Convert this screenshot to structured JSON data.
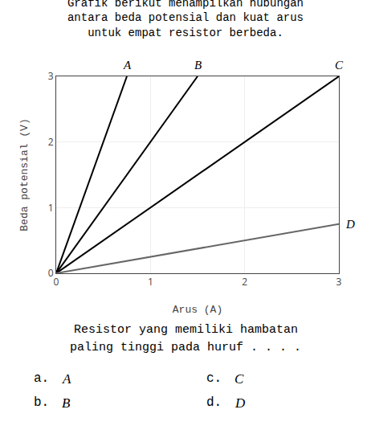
{
  "chart_data": {
    "type": "line",
    "title": [
      "Grafik berikut menampilkan hubungan",
      "antara beda potensial dan kuat arus",
      "untuk empat resistor berbeda."
    ],
    "xlabel": "Arus (A)",
    "ylabel": "Beda potensial (V)",
    "xlim": [
      0,
      3
    ],
    "ylim": [
      0,
      3
    ],
    "xticks": [
      0,
      1,
      2,
      3
    ],
    "yticks": [
      0,
      1,
      2,
      3
    ],
    "grid": true,
    "series": [
      {
        "name": "A",
        "x": [
          0,
          0.75
        ],
        "values": [
          0,
          3
        ],
        "color": "#000000"
      },
      {
        "name": "B",
        "x": [
          0,
          1.5
        ],
        "values": [
          0,
          3
        ],
        "color": "#000000"
      },
      {
        "name": "C",
        "x": [
          0,
          3.0
        ],
        "values": [
          0,
          3
        ],
        "color": "#000000"
      },
      {
        "name": "D",
        "x": [
          0,
          3.0
        ],
        "values": [
          0,
          0.75
        ],
        "color": "#666666"
      }
    ],
    "annotations": {
      "question": [
        "Resistor yang memiliki hambatan",
        "paling tinggi pada huruf . . . ."
      ],
      "options": [
        [
          "a. A",
          "c. C"
        ],
        [
          "b. B",
          "d. D"
        ]
      ]
    }
  }
}
